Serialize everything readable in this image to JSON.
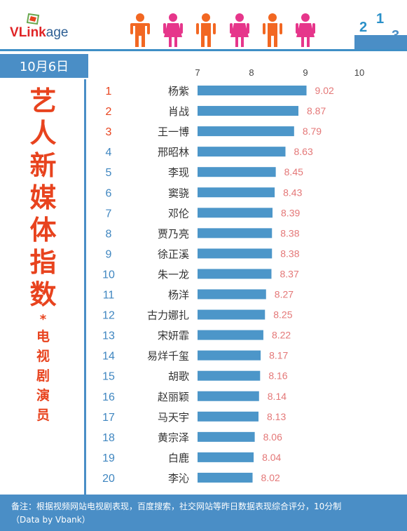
{
  "brand": {
    "logo_v": "V",
    "logo_link": "Link",
    "logo_age": "age"
  },
  "podium": {
    "first": "1",
    "second": "2",
    "third": "3"
  },
  "date_label": "10月6日",
  "title_chars": [
    "艺",
    "人",
    "新",
    "媒",
    "体",
    "指",
    "数"
  ],
  "title_star": "*",
  "subtitle_chars": [
    "电",
    "视",
    "剧",
    "演",
    "员"
  ],
  "footer": {
    "note": "备注：根据视频网站电视剧表现，百度搜索，社交网站等昨日数据表现综合评分，10分制",
    "source": "（Data by Vbank）"
  },
  "colors": {
    "bar": "#4c96c9",
    "top_rank": "#e8431e",
    "other_rank": "#3f86c0",
    "value_label": "#e47777",
    "title": "#e8431e",
    "accent_blue": "#4a8ec6",
    "person_orange": "#f26722",
    "person_pink": "#e6368b"
  },
  "header_icons": [
    "person-orange-icon",
    "person-pink-icon",
    "person-orange-icon",
    "person-pink-icon",
    "person-orange-icon",
    "person-pink-icon"
  ],
  "chart_data": {
    "type": "bar",
    "orientation": "horizontal",
    "title": "",
    "xlabel": "",
    "ylabel": "",
    "xlim": [
      7,
      10
    ],
    "ticks": [
      7,
      8,
      9,
      10
    ],
    "grid": false,
    "ranks": [
      "1",
      "2",
      "3",
      "4",
      "5",
      "6",
      "7",
      "8",
      "9",
      "10",
      "11",
      "12",
      "13",
      "14",
      "15",
      "16",
      "17",
      "18",
      "19",
      "20"
    ],
    "categories": [
      "杨紫",
      "肖战",
      "王一博",
      "邢昭林",
      "李现",
      "窦骁",
      "邓伦",
      "贾乃亮",
      "徐正溪",
      "朱一龙",
      "杨洋",
      "古力娜扎",
      "宋妍霏",
      "易烊千玺",
      "胡歌",
      "赵丽颖",
      "马天宇",
      "黄宗泽",
      "白鹿",
      "李沁"
    ],
    "values": [
      9.02,
      8.87,
      8.79,
      8.63,
      8.45,
      8.43,
      8.39,
      8.38,
      8.38,
      8.37,
      8.27,
      8.25,
      8.22,
      8.17,
      8.16,
      8.14,
      8.13,
      8.06,
      8.04,
      8.02
    ],
    "value_labels": [
      "9.02",
      "8.87",
      "8.79",
      "8.63",
      "8.45",
      "8.43",
      "8.39",
      "8.38",
      "8.38",
      "8.37",
      "8.27",
      "8.25",
      "8.22",
      "8.17",
      "8.16",
      "8.14",
      "8.13",
      "8.06",
      "8.04",
      "8.02"
    ]
  }
}
